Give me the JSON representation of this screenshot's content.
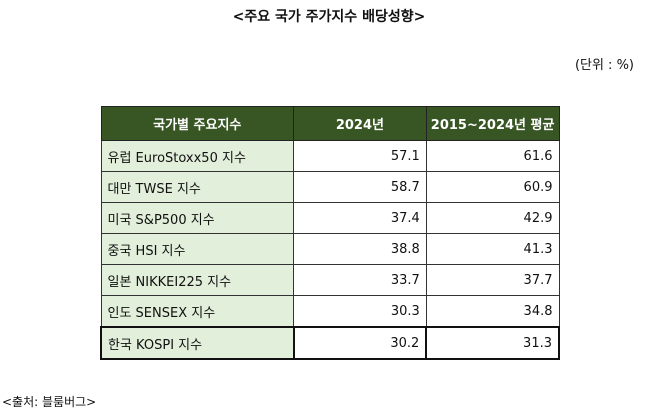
{
  "title": "<주요 국가 주가지수 배당성향>",
  "unit": "(단위 : %)",
  "table": {
    "headers": [
      "국가별 주요지수",
      "2024년",
      "2015~2024년 평균"
    ],
    "rows": [
      {
        "name": "유럽 EuroStoxx50 지수",
        "y2024": "57.1",
        "avg": "61.6"
      },
      {
        "name": "대만 TWSE 지수",
        "y2024": "58.7",
        "avg": "60.9"
      },
      {
        "name": "미국 S&P500 지수",
        "y2024": "37.4",
        "avg": "42.9"
      },
      {
        "name": "중국 HSI 지수",
        "y2024": "38.8",
        "avg": "41.3"
      },
      {
        "name": "일본 NIKKEI225 지수",
        "y2024": "33.7",
        "avg": "37.7"
      },
      {
        "name": "인도 SENSEX 지수",
        "y2024": "30.3",
        "avg": "34.8"
      },
      {
        "name": "한국 KOSPI 지수",
        "y2024": "30.2",
        "avg": "31.3"
      }
    ]
  },
  "source": "<출처: 블룸버그>"
}
